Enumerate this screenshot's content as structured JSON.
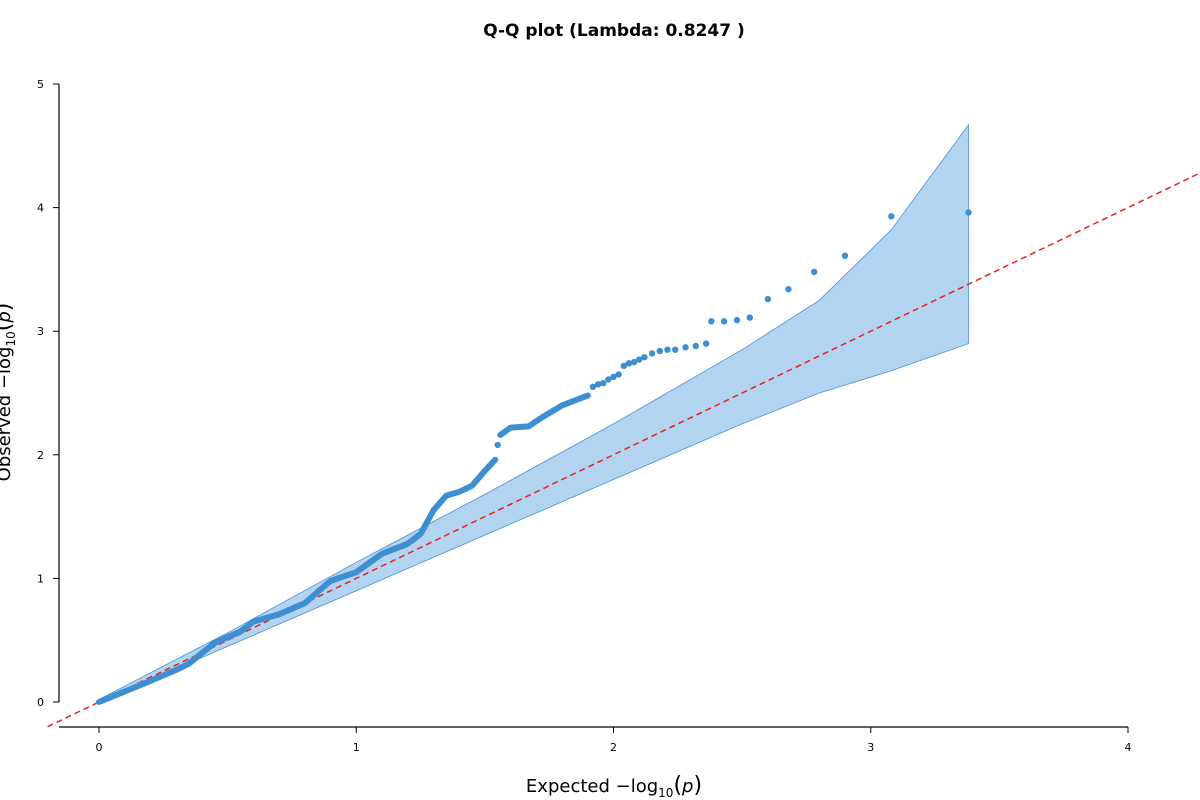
{
  "chart_data": {
    "type": "scatter",
    "title": "Q-Q plot (Lambda: 0.8247 )",
    "xlabel_prefix": "Expected",
    "ylabel_prefix": "Observed",
    "axis_expr": {
      "minus": "−log",
      "sub": "10",
      "open": "(",
      "var": "p",
      "close": ")"
    },
    "xlim": [
      0,
      4
    ],
    "ylim": [
      0,
      5
    ],
    "x_ticks": [
      0,
      1,
      2,
      3,
      4
    ],
    "x_tick_labels": [
      "0",
      "1",
      "2",
      "3",
      "4"
    ],
    "y_ticks": [
      0,
      1,
      2,
      3,
      4,
      5
    ],
    "y_tick_labels": [
      "0",
      "1",
      "2",
      "3",
      "4",
      "5"
    ],
    "grid": false,
    "colors": {
      "points": "#3d8fd1",
      "band_fill": "#b3d4f0",
      "band_stroke": "#4a90d0",
      "reference": "#e8211c"
    },
    "reference_line": {
      "style": "dashed",
      "slope": 1,
      "intercept": 0
    },
    "confidence_band": {
      "x": [
        0,
        0.5,
        1.0,
        1.5,
        2.0,
        2.5,
        2.8,
        3.08,
        3.38
      ],
      "upper": [
        0.02,
        0.56,
        1.13,
        1.68,
        2.25,
        2.85,
        3.25,
        3.82,
        4.67
      ],
      "lower": [
        0,
        0.45,
        0.9,
        1.35,
        1.8,
        2.25,
        2.5,
        2.68,
        2.9
      ]
    },
    "curve_segments": [
      [
        [
          0.0,
          0.0
        ],
        [
          0.2,
          0.17
        ],
        [
          0.3,
          0.26
        ],
        [
          0.35,
          0.31
        ],
        [
          0.45,
          0.48
        ],
        [
          0.55,
          0.57
        ],
        [
          0.6,
          0.65
        ],
        [
          0.7,
          0.71
        ],
        [
          0.8,
          0.8
        ],
        [
          0.9,
          0.98
        ],
        [
          1.0,
          1.05
        ],
        [
          1.1,
          1.2
        ],
        [
          1.2,
          1.28
        ],
        [
          1.25,
          1.36
        ],
        [
          1.3,
          1.55
        ],
        [
          1.35,
          1.67
        ],
        [
          1.4,
          1.7
        ],
        [
          1.45,
          1.75
        ],
        [
          1.5,
          1.87
        ],
        [
          1.54,
          1.96
        ]
      ],
      [
        [
          1.56,
          2.16
        ],
        [
          1.6,
          2.22
        ],
        [
          1.67,
          2.23
        ],
        [
          1.72,
          2.3
        ],
        [
          1.8,
          2.4
        ],
        [
          1.85,
          2.44
        ],
        [
          1.9,
          2.48
        ]
      ]
    ],
    "points": [
      [
        1.55,
        2.08
      ],
      [
        1.92,
        2.55
      ],
      [
        1.94,
        2.57
      ],
      [
        1.96,
        2.58
      ],
      [
        1.98,
        2.61
      ],
      [
        2.0,
        2.63
      ],
      [
        2.02,
        2.65
      ],
      [
        2.04,
        2.72
      ],
      [
        2.06,
        2.74
      ],
      [
        2.08,
        2.75
      ],
      [
        2.1,
        2.77
      ],
      [
        2.12,
        2.79
      ],
      [
        2.15,
        2.82
      ],
      [
        2.18,
        2.84
      ],
      [
        2.21,
        2.85
      ],
      [
        2.24,
        2.85
      ],
      [
        2.28,
        2.87
      ],
      [
        2.32,
        2.88
      ],
      [
        2.36,
        2.9
      ],
      [
        2.38,
        3.08
      ],
      [
        2.43,
        3.08
      ],
      [
        2.48,
        3.09
      ],
      [
        2.53,
        3.11
      ],
      [
        2.6,
        3.26
      ],
      [
        2.68,
        3.34
      ],
      [
        2.78,
        3.48
      ],
      [
        2.9,
        3.61
      ],
      [
        3.08,
        3.93
      ],
      [
        3.38,
        3.96
      ]
    ]
  }
}
